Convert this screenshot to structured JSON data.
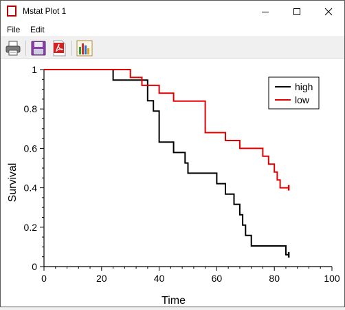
{
  "window": {
    "title": "Mstat Plot 1"
  },
  "menu": {
    "file": "File",
    "edit": "Edit"
  },
  "toolbar": [
    "print-icon",
    "save-icon",
    "pdf-icon",
    "chart-icon"
  ],
  "chart_data": {
    "type": "line",
    "xlabel": "Time",
    "ylabel": "Survival",
    "xlim": [
      0,
      100
    ],
    "ylim": [
      0,
      1
    ],
    "x_ticks": [
      "0",
      "20",
      "40",
      "60",
      "80",
      "100"
    ],
    "y_ticks": [
      "0",
      "0.2",
      "0.4",
      "0.6",
      "0.8",
      "1"
    ],
    "legend_position": "top-right",
    "step": true,
    "series": [
      {
        "name": "high",
        "color": "#000000",
        "points": [
          [
            0,
            1
          ],
          [
            24,
            1
          ],
          [
            24,
            0.947
          ],
          [
            36,
            0.947
          ],
          [
            36,
            0.842
          ],
          [
            38,
            0.842
          ],
          [
            38,
            0.789
          ],
          [
            40,
            0.789
          ],
          [
            40,
            0.632
          ],
          [
            45,
            0.632
          ],
          [
            45,
            0.579
          ],
          [
            49,
            0.579
          ],
          [
            49,
            0.526
          ],
          [
            50,
            0.526
          ],
          [
            50,
            0.474
          ],
          [
            60,
            0.474
          ],
          [
            60,
            0.421
          ],
          [
            63,
            0.421
          ],
          [
            63,
            0.368
          ],
          [
            66,
            0.368
          ],
          [
            66,
            0.316
          ],
          [
            68,
            0.316
          ],
          [
            68,
            0.263
          ],
          [
            69,
            0.263
          ],
          [
            69,
            0.211
          ],
          [
            70,
            0.211
          ],
          [
            70,
            0.158
          ],
          [
            72,
            0.158
          ],
          [
            72,
            0.105
          ],
          [
            84,
            0.105
          ],
          [
            84,
            0.06
          ],
          [
            85,
            0.06
          ]
        ],
        "censor_x": 85
      },
      {
        "name": "low",
        "color": "#e00000",
        "points": [
          [
            0,
            1
          ],
          [
            30,
            1
          ],
          [
            30,
            0.96
          ],
          [
            34,
            0.96
          ],
          [
            34,
            0.92
          ],
          [
            40,
            0.92
          ],
          [
            40,
            0.88
          ],
          [
            45,
            0.88
          ],
          [
            45,
            0.84
          ],
          [
            56,
            0.84
          ],
          [
            56,
            0.68
          ],
          [
            63,
            0.68
          ],
          [
            63,
            0.64
          ],
          [
            68,
            0.64
          ],
          [
            68,
            0.6
          ],
          [
            76,
            0.6
          ],
          [
            76,
            0.56
          ],
          [
            78,
            0.56
          ],
          [
            78,
            0.52
          ],
          [
            80,
            0.52
          ],
          [
            80,
            0.48
          ],
          [
            81,
            0.48
          ],
          [
            81,
            0.44
          ],
          [
            82,
            0.44
          ],
          [
            82,
            0.4
          ],
          [
            85,
            0.4
          ]
        ],
        "censor_x": 85
      }
    ]
  }
}
